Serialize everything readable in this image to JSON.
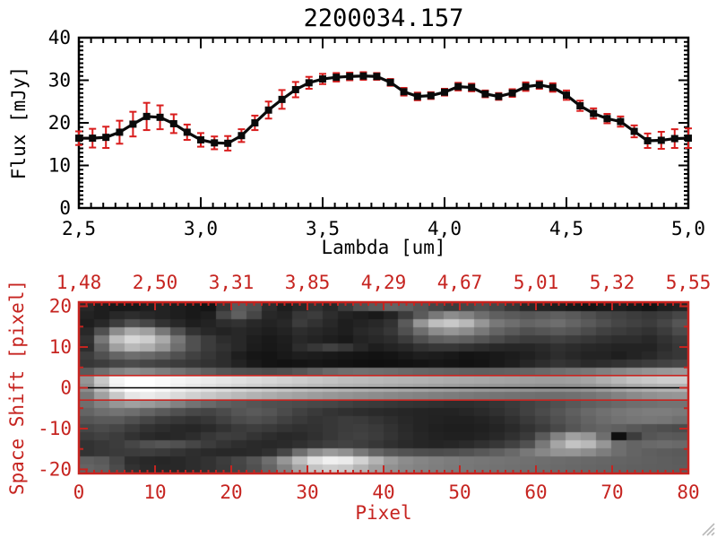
{
  "title": "2200034.157",
  "colors": {
    "background": "#ffffff",
    "axis_black": "#000000",
    "axis_red": "#c62420",
    "error_bar_red": "#d91d1d",
    "curve_black": "#0a0a0a"
  },
  "chart_data": [
    {
      "type": "line",
      "title": "2200034.157",
      "xlabel": "Lambda [um]",
      "ylabel": "Flux [mJy]",
      "xlim": [
        2.5,
        5.0
      ],
      "ylim": [
        0,
        40
      ],
      "grid": false,
      "xtick_labels": [
        "2,5",
        "3,0",
        "3,5",
        "4,0",
        "4,5",
        "5,0"
      ],
      "xtick_values": [
        2.5,
        3.0,
        3.5,
        4.0,
        4.5,
        5.0
      ],
      "ytick_labels": [
        "0",
        "10",
        "20",
        "30",
        "40"
      ],
      "ytick_values": [
        0,
        10,
        20,
        30,
        40
      ],
      "marker": "filled-square",
      "error_bars": true,
      "series": [
        {
          "name": "flux",
          "x": [
            2.5,
            2.556,
            2.611,
            2.667,
            2.722,
            2.778,
            2.833,
            2.889,
            2.944,
            3.0,
            3.056,
            3.111,
            3.167,
            3.222,
            3.278,
            3.333,
            3.389,
            3.444,
            3.5,
            3.556,
            3.611,
            3.667,
            3.722,
            3.778,
            3.833,
            3.889,
            3.944,
            4.0,
            4.056,
            4.111,
            4.167,
            4.222,
            4.278,
            4.333,
            4.389,
            4.444,
            4.5,
            4.556,
            4.611,
            4.667,
            4.722,
            4.778,
            4.833,
            4.889,
            4.944,
            5.0
          ],
          "y": [
            16.4,
            16.4,
            16.6,
            17.8,
            19.7,
            21.5,
            21.3,
            19.8,
            17.8,
            16.0,
            15.3,
            15.2,
            17.0,
            20.0,
            23.0,
            25.5,
            27.8,
            29.4,
            30.3,
            30.7,
            30.9,
            31.0,
            30.9,
            29.5,
            27.3,
            26.2,
            26.4,
            27.2,
            28.5,
            28.3,
            26.8,
            26.2,
            27.0,
            28.5,
            28.9,
            28.3,
            26.5,
            24.0,
            22.2,
            21.0,
            20.3,
            18.0,
            15.8,
            15.9,
            16.3,
            16.4
          ],
          "yerr": [
            1.6,
            2.2,
            2.5,
            2.7,
            2.9,
            3.2,
            2.8,
            2.2,
            1.8,
            1.6,
            1.5,
            1.7,
            1.5,
            1.7,
            2.0,
            2.2,
            1.8,
            1.4,
            1.2,
            1.0,
            0.9,
            0.9,
            0.8,
            0.8,
            0.9,
            0.9,
            0.8,
            0.8,
            0.9,
            0.9,
            0.8,
            0.8,
            0.9,
            1.0,
            0.9,
            1.0,
            1.1,
            1.2,
            1.2,
            1.1,
            1.2,
            1.4,
            1.7,
            2.0,
            2.2,
            2.3
          ]
        }
      ]
    },
    {
      "type": "heatmap",
      "xlabel": "Pixel",
      "ylabel": "Space Shift [pixel]",
      "xlim": [
        0,
        80
      ],
      "ylim": [
        -21,
        21
      ],
      "xtick_labels": [
        "0",
        "10",
        "20",
        "30",
        "40",
        "50",
        "60",
        "70",
        "80"
      ],
      "xtick_values": [
        0,
        10,
        20,
        30,
        40,
        50,
        60,
        70,
        80
      ],
      "top_axis_tick_labels": [
        "1,48",
        "2,50",
        "3,31",
        "3,85",
        "4,29",
        "4,67",
        "5,01",
        "5,32",
        "5,55"
      ],
      "top_axis_tick_values": [
        0,
        10,
        20,
        30,
        40,
        50,
        60,
        70,
        80
      ],
      "ytick_labels": [
        "20",
        "10",
        "0",
        "-10",
        "-20"
      ],
      "ytick_values": [
        20,
        10,
        0,
        -10,
        -20
      ],
      "palette": "grayscale",
      "overlay_lines": [
        {
          "y": 3,
          "color": "#c62420"
        },
        {
          "y": -3,
          "color": "#c62420"
        },
        {
          "y": 0,
          "color": "#000000"
        }
      ],
      "matrix_value_range": [
        0,
        255
      ],
      "matrix_rows_top_to_bottom": [
        [
          40,
          30,
          25,
          25,
          30,
          35,
          30,
          25,
          20,
          55,
          90,
          80,
          45,
          30,
          40,
          50,
          40,
          60,
          80,
          90,
          100,
          95,
          85,
          70,
          60,
          70,
          80,
          70,
          55,
          40,
          35,
          30,
          25,
          20,
          25,
          30,
          25,
          20,
          30,
          35
        ],
        [
          35,
          30,
          40,
          45,
          40,
          35,
          30,
          25,
          30,
          70,
          95,
          70,
          40,
          35,
          55,
          60,
          45,
          35,
          30,
          25,
          35,
          60,
          90,
          120,
          140,
          130,
          110,
          95,
          90,
          85,
          90,
          95,
          90,
          80,
          70,
          65,
          60,
          55,
          60,
          70
        ],
        [
          30,
          40,
          60,
          80,
          70,
          50,
          40,
          30,
          35,
          45,
          50,
          40,
          35,
          40,
          60,
          50,
          40,
          30,
          35,
          40,
          50,
          90,
          150,
          190,
          200,
          185,
          150,
          120,
          110,
          100,
          105,
          110,
          100,
          90,
          80,
          70,
          65,
          60,
          70,
          85
        ],
        [
          40,
          80,
          140,
          170,
          160,
          120,
          80,
          50,
          40,
          35,
          40,
          35,
          30,
          35,
          45,
          40,
          35,
          30,
          40,
          45,
          55,
          80,
          110,
          140,
          150,
          140,
          120,
          100,
          90,
          80,
          85,
          90,
          85,
          75,
          65,
          60,
          55,
          50,
          60,
          75
        ],
        [
          50,
          120,
          190,
          215,
          205,
          170,
          120,
          80,
          60,
          45,
          40,
          30,
          25,
          30,
          40,
          35,
          30,
          25,
          35,
          40,
          45,
          60,
          80,
          95,
          100,
          95,
          85,
          75,
          65,
          60,
          60,
          65,
          60,
          55,
          50,
          45,
          45,
          40,
          50,
          60
        ],
        [
          45,
          100,
          160,
          185,
          175,
          150,
          110,
          80,
          60,
          50,
          40,
          28,
          24,
          28,
          45,
          55,
          65,
          55,
          40,
          30,
          35,
          40,
          50,
          55,
          55,
          50,
          45,
          40,
          38,
          38,
          42,
          48,
          44,
          40,
          38,
          35,
          35,
          35,
          45,
          55
        ],
        [
          60,
          80,
          100,
          110,
          105,
          95,
          80,
          65,
          55,
          45,
          30,
          22,
          20,
          25,
          30,
          28,
          25,
          22,
          20,
          18,
          20,
          25,
          30,
          28,
          25,
          20,
          22,
          25,
          28,
          32,
          38,
          45,
          40,
          35,
          35,
          30,
          35,
          40,
          50,
          55
        ],
        [
          55,
          60,
          70,
          75,
          70,
          65,
          60,
          55,
          50,
          45,
          35,
          25,
          20,
          18,
          20,
          22,
          20,
          18,
          16,
          15,
          16,
          18,
          20,
          22,
          20,
          18,
          20,
          25,
          30,
          38,
          45,
          52,
          48,
          42,
          45,
          50,
          55,
          60,
          65,
          70
        ],
        [
          90,
          110,
          130,
          140,
          135,
          125,
          115,
          105,
          95,
          85,
          80,
          78,
          75,
          78,
          85,
          95,
          105,
          110,
          112,
          110,
          108,
          105,
          102,
          100,
          98,
          96,
          95,
          96,
          98,
          100,
          105,
          110,
          115,
          120,
          128,
          135,
          142,
          148,
          152,
          155
        ],
        [
          150,
          200,
          245,
          255,
          255,
          250,
          245,
          240,
          235,
          230,
          225,
          220,
          215,
          210,
          205,
          200,
          195,
          190,
          188,
          185,
          182,
          180,
          178,
          175,
          172,
          170,
          168,
          165,
          163,
          160,
          158,
          158,
          160,
          165,
          175,
          185,
          195,
          200,
          205,
          205
        ],
        [
          140,
          190,
          240,
          255,
          255,
          248,
          240,
          232,
          226,
          220,
          214,
          208,
          202,
          197,
          192,
          187,
          183,
          179,
          176,
          173,
          170,
          167,
          164,
          161,
          158,
          155,
          152,
          150,
          148,
          146,
          144,
          143,
          144,
          148,
          155,
          163,
          170,
          175,
          178,
          178
        ],
        [
          120,
          160,
          200,
          230,
          235,
          228,
          218,
          208,
          200,
          192,
          185,
          178,
          172,
          166,
          161,
          156,
          151,
          147,
          143,
          140,
          136,
          133,
          130,
          127,
          124,
          121,
          118,
          116,
          114,
          112,
          110,
          110,
          112,
          116,
          122,
          130,
          138,
          144,
          148,
          150
        ],
        [
          110,
          130,
          150,
          160,
          155,
          145,
          130,
          115,
          105,
          95,
          90,
          85,
          80,
          78,
          75,
          72,
          70,
          65,
          60,
          58,
          55,
          52,
          50,
          48,
          45,
          45,
          48,
          52,
          58,
          65,
          72,
          80,
          88,
          95,
          100,
          105,
          110,
          112,
          115,
          115
        ],
        [
          100,
          110,
          115,
          110,
          100,
          90,
          80,
          72,
          68,
          75,
          85,
          90,
          85,
          75,
          65,
          58,
          52,
          48,
          45,
          42,
          40,
          38,
          36,
          35,
          35,
          38,
          42,
          48,
          55,
          65,
          75,
          85,
          95,
          105,
          112,
          118,
          122,
          125,
          125,
          122
        ],
        [
          85,
          90,
          90,
          80,
          70,
          60,
          55,
          50,
          55,
          65,
          75,
          80,
          75,
          65,
          58,
          52,
          55,
          60,
          58,
          52,
          46,
          40,
          36,
          34,
          32,
          32,
          35,
          40,
          48,
          58,
          68,
          80,
          90,
          100,
          108,
          114,
          118,
          120,
          118,
          112
        ],
        [
          70,
          75,
          70,
          60,
          50,
          45,
          40,
          38,
          42,
          50,
          58,
          62,
          58,
          52,
          48,
          50,
          55,
          60,
          62,
          58,
          50,
          42,
          36,
          32,
          30,
          30,
          32,
          36,
          42,
          50,
          60,
          72,
          85,
          95,
          100,
          95,
          88,
          82,
          78,
          75
        ],
        [
          60,
          65,
          60,
          50,
          42,
          38,
          40,
          45,
          55,
          62,
          60,
          52,
          45,
          40,
          42,
          48,
          55,
          62,
          65,
          60,
          52,
          44,
          38,
          34,
          32,
          32,
          35,
          40,
          48,
          58,
          90,
          130,
          160,
          150,
          110,
          15,
          60,
          85,
          90,
          88
        ],
        [
          50,
          55,
          60,
          70,
          80,
          85,
          80,
          70,
          60,
          52,
          46,
          42,
          40,
          42,
          48,
          55,
          62,
          66,
          62,
          55,
          48,
          42,
          38,
          36,
          38,
          42,
          48,
          55,
          65,
          80,
          120,
          165,
          195,
          185,
          150,
          110,
          100,
          105,
          108,
          105
        ],
        [
          50,
          55,
          58,
          60,
          62,
          58,
          52,
          46,
          42,
          40,
          40,
          42,
          48,
          70,
          110,
          140,
          155,
          145,
          120,
          100,
          88,
          82,
          78,
          76,
          78,
          82,
          88,
          95,
          105,
          120,
          135,
          148,
          150,
          140,
          125,
          110,
          100,
          95,
          92,
          90
        ],
        [
          95,
          90,
          70,
          45,
          40,
          38,
          40,
          45,
          50,
          60,
          70,
          85,
          110,
          150,
          190,
          225,
          240,
          235,
          210,
          180,
          155,
          140,
          133,
          128,
          124,
          120,
          118,
          116,
          114,
          112,
          110,
          108,
          106,
          104,
          102,
          100,
          98,
          96,
          94,
          92
        ],
        [
          100,
          95,
          75,
          50,
          42,
          40,
          40,
          45,
          50,
          58,
          68,
          80,
          100,
          130,
          165,
          195,
          205,
          200,
          180,
          160,
          145,
          135,
          130,
          126,
          122,
          119,
          116,
          114,
          112,
          110,
          108,
          106,
          104,
          102,
          100,
          98,
          96,
          95,
          94,
          93
        ]
      ]
    }
  ]
}
